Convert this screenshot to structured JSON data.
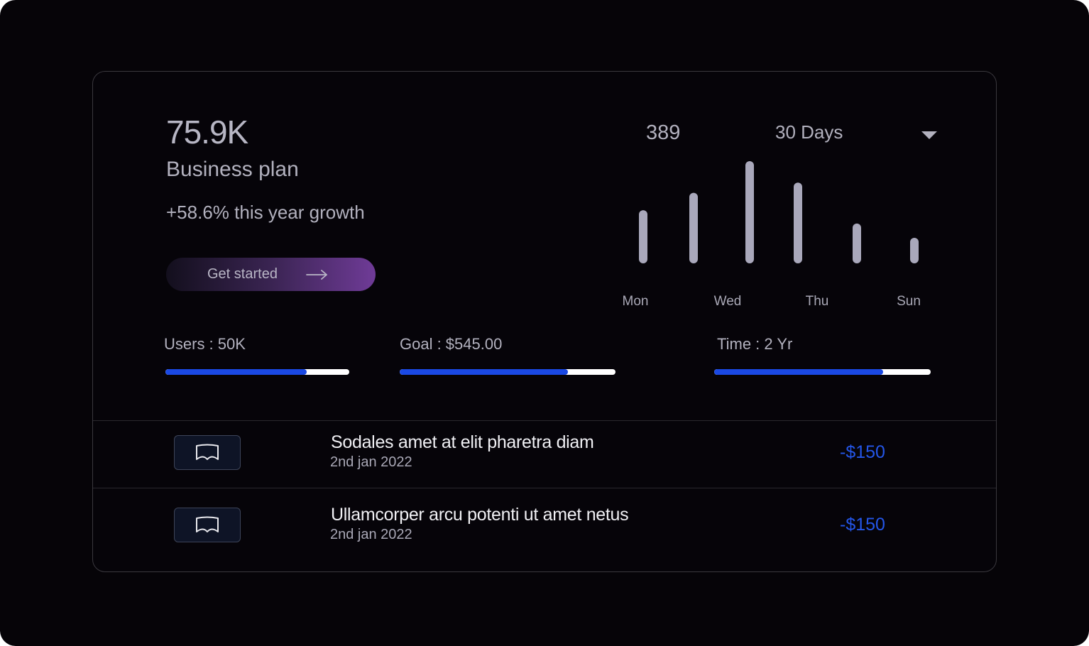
{
  "summary": {
    "value": "75.9K",
    "plan": "Business plan",
    "growth": "+58.6% this year growth",
    "cta_label": "Get started"
  },
  "chart_header": {
    "count": "389",
    "period": "30 Days"
  },
  "chart_data": {
    "type": "bar",
    "categories": [
      "Mon",
      "",
      "Wed",
      "Thu",
      "",
      "Sun"
    ],
    "values": [
      0.52,
      0.69,
      1.0,
      0.79,
      0.39,
      0.25
    ],
    "tick_labels": [
      "Mon",
      "Wed",
      "Thu",
      "Sun"
    ],
    "title": "",
    "xlabel": "",
    "ylabel": "",
    "ylim": [
      0,
      1
    ],
    "grid": false,
    "bar_color": "#a9a8bb"
  },
  "stats": [
    {
      "label": "Users : 50K",
      "progress": 0.77
    },
    {
      "label": "Goal : $545.00",
      "progress": 0.78
    },
    {
      "label": "Time : 2 Yr",
      "progress": 0.78
    }
  ],
  "transactions": [
    {
      "title": "Sodales amet at elit pharetra diam",
      "date": "2nd jan 2022",
      "amount": "-$150",
      "icon": "book-icon"
    },
    {
      "title": "Ullamcorper arcu potenti ut amet netus",
      "date": "2nd jan 2022",
      "amount": "-$150",
      "icon": "book-icon"
    }
  ],
  "colors": {
    "accent": "#1a49e4",
    "amount": "#2456e8",
    "cta_gradient_start": "#130f1d",
    "cta_gradient_end": "#6f3b97",
    "background": "#060408"
  }
}
